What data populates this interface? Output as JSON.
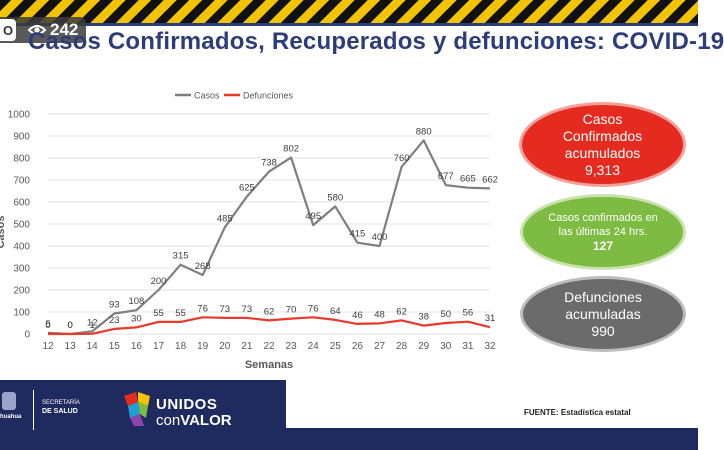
{
  "overlay": {
    "live_tag": "O",
    "viewers": "242"
  },
  "title": "Casos Confirmados, Recuperados y defunciones: COVID-19",
  "chart_data": {
    "type": "line",
    "xlabel": "Semanas",
    "ylabel": "Casos",
    "ylim": [
      0,
      1000
    ],
    "yticks": [
      0,
      100,
      200,
      300,
      400,
      500,
      600,
      700,
      800,
      900,
      1000
    ],
    "categories": [
      "12",
      "13",
      "14",
      "15",
      "16",
      "17",
      "18",
      "19",
      "20",
      "21",
      "22",
      "23",
      "24",
      "25",
      "26",
      "27",
      "28",
      "29",
      "30",
      "31",
      "32"
    ],
    "legend_position": "top-center",
    "series": [
      {
        "name": "Casos",
        "color": "#7f7f7f",
        "values": [
          5,
          0,
          12,
          93,
          108,
          200,
          315,
          268,
          485,
          625,
          738,
          802,
          495,
          580,
          415,
          400,
          760,
          880,
          677,
          665,
          662
        ]
      },
      {
        "name": "Defunciones",
        "color": "#e8392c",
        "values": [
          0,
          0,
          1,
          23,
          30,
          55,
          55,
          76,
          73,
          73,
          62,
          70,
          76,
          64,
          46,
          48,
          62,
          38,
          50,
          56,
          31
        ]
      }
    ]
  },
  "summary": {
    "confirmados_label_1": "Casos",
    "confirmados_label_2": "Confirmados",
    "confirmados_label_3": "acumulados",
    "confirmados_value": "9,313",
    "ultimas_label_1": "Casos confirmados en",
    "ultimas_label_2": "las últimas 24 hrs.",
    "ultimas_value": "127",
    "defunciones_label_1": "Defunciones",
    "defunciones_label_2": "acumuladas",
    "defunciones_value": "990"
  },
  "footer": {
    "gov": "huahua",
    "secretaria_1": "SECRETARÍA",
    "secretaria_2": "DE SALUD",
    "unidos_1": "UNIDOS",
    "unidos_2a": "con",
    "unidos_2b": "VALOR",
    "fuente": "FUENTE: Estadística estatal"
  },
  "colors": {
    "brand": "#2c3d7a",
    "red": "#e52b1f",
    "green": "#7dbb42",
    "gray": "#6b6b6b"
  }
}
